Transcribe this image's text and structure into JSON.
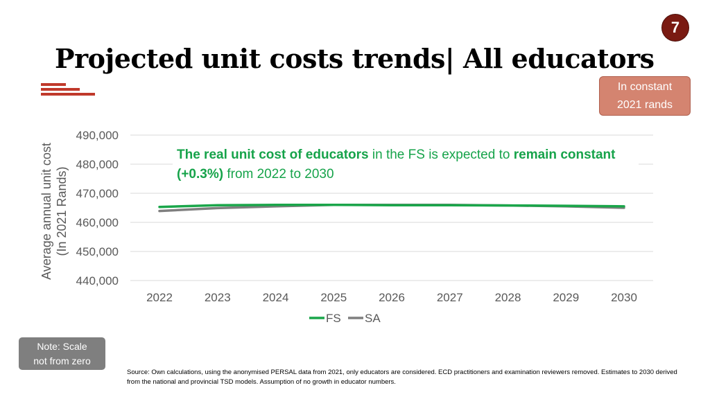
{
  "slide": {
    "page_number": "7",
    "title": "Projected unit costs trends| All educators",
    "unit_badge": [
      "In constant",
      "2021 rands"
    ],
    "callout": {
      "parts": [
        {
          "text": "The real unit cost of educators",
          "bold": true
        },
        {
          "text": " in the FS is expected to ",
          "bold": false
        },
        {
          "text": "remain constant (+0.3%)",
          "bold": true
        },
        {
          "text": " from 2022 to 2030",
          "bold": false
        }
      ]
    },
    "note": [
      "Note: Scale",
      "not from zero"
    ],
    "source": "Source: Own calculations, using the anonymised PERSAL data from 2021, only educators are considered. ECD practitioners and examination reviewers removed. Estimates to 2030 derived from the national and provincial TSD models. Assumption of no growth in educator numbers."
  },
  "colors": {
    "accent": "#c0392b",
    "badge": "#d48470",
    "fs": "#1aa64a",
    "sa": "#7f7f7f",
    "callout_text": "#16a34a"
  },
  "chart_data": {
    "type": "line",
    "title": "",
    "ylabel": [
      "Average annual unit cost",
      "(In 2021 Rands)"
    ],
    "xlabel": "",
    "categories": [
      "2022",
      "2023",
      "2024",
      "2025",
      "2026",
      "2027",
      "2028",
      "2029",
      "2030"
    ],
    "ylim": [
      440000,
      490000
    ],
    "yticks": [
      490000,
      480000,
      470000,
      460000,
      450000,
      440000
    ],
    "ytick_labels": [
      "490,000",
      "480,000",
      "470,000",
      "460,000",
      "450,000",
      "440,000"
    ],
    "grid": true,
    "legend": "bottom",
    "series": [
      {
        "name": "FS",
        "color": "#1aa64a",
        "values": [
          465300,
          465900,
          466000,
          466000,
          465900,
          465900,
          465800,
          465700,
          465500
        ]
      },
      {
        "name": "SA",
        "color": "#7f7f7f",
        "values": [
          463900,
          464900,
          465500,
          466000,
          466000,
          466000,
          465800,
          465500,
          465000
        ]
      }
    ]
  }
}
